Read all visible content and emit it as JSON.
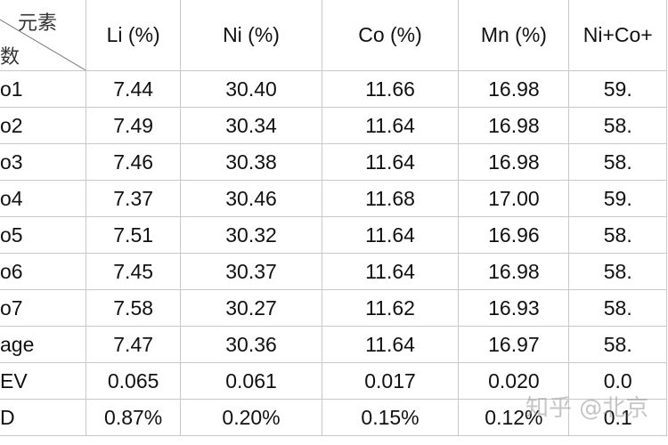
{
  "header": {
    "corner_top": "元素",
    "corner_bottom": "数",
    "columns": [
      "Li (%)",
      "Ni (%)",
      "Co (%)",
      "Mn (%)",
      "Ni+Co+"
    ]
  },
  "table": {
    "rows": [
      [
        "o1",
        "7.44",
        "30.40",
        "11.66",
        "16.98",
        "59."
      ],
      [
        "o2",
        "7.49",
        "30.34",
        "11.64",
        "16.98",
        "58."
      ],
      [
        "o3",
        "7.46",
        "30.38",
        "11.64",
        "16.98",
        "58."
      ],
      [
        "o4",
        "7.37",
        "30.46",
        "11.68",
        "17.00",
        "59."
      ],
      [
        "o5",
        "7.51",
        "30.32",
        "11.64",
        "16.96",
        "58."
      ],
      [
        "o6",
        "7.45",
        "30.37",
        "11.64",
        "16.98",
        "58."
      ],
      [
        "o7",
        "7.58",
        "30.27",
        "11.62",
        "16.93",
        "58."
      ],
      [
        "age",
        "7.47",
        "30.36",
        "11.64",
        "16.97",
        "58."
      ],
      [
        "EV",
        "0.065",
        "0.061",
        "0.017",
        "0.020",
        "0.0"
      ],
      [
        "D",
        "0.87%",
        "0.20%",
        "0.15%",
        "0.12%",
        "0.1"
      ]
    ]
  },
  "watermark": "知乎 @北京"
}
